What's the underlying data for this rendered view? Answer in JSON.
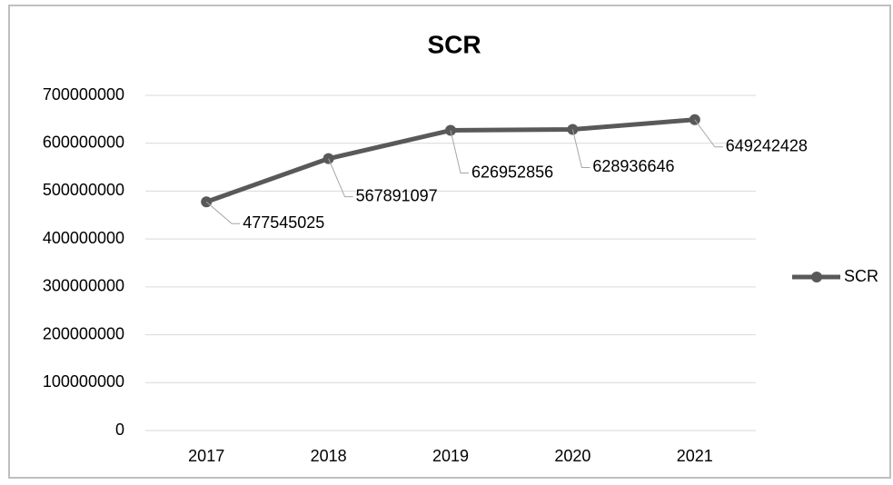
{
  "chart_data": {
    "type": "line",
    "title": "SCR",
    "categories": [
      "2017",
      "2018",
      "2019",
      "2020",
      "2021"
    ],
    "series": [
      {
        "name": "SCR",
        "color": "#595959",
        "values": [
          477545025,
          567891097,
          626952856,
          628936646,
          649242428
        ]
      }
    ],
    "ylim": [
      0,
      700000000
    ],
    "yticks": [
      0,
      100000000,
      200000000,
      300000000,
      400000000,
      500000000,
      600000000,
      700000000
    ],
    "grid": true,
    "legend": "right",
    "data_labels": true
  }
}
